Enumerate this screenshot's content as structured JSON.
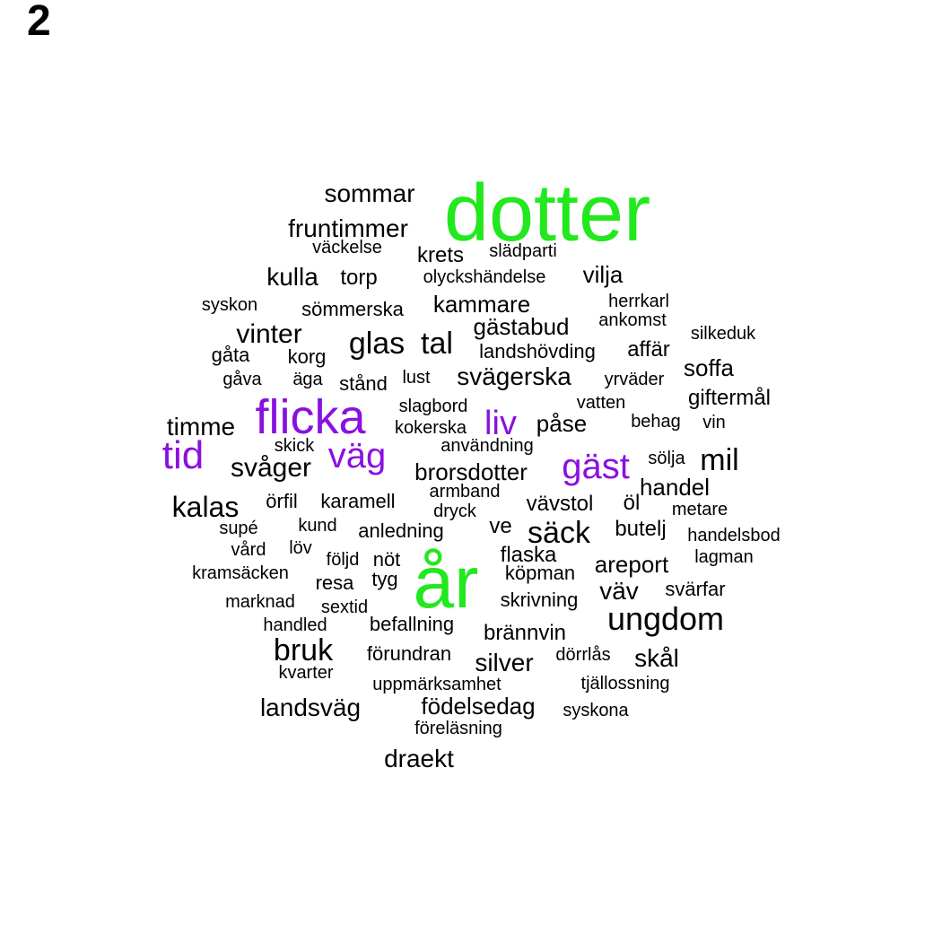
{
  "panel_label": "2",
  "colors": {
    "default": "#000000",
    "green": "#22e81e",
    "purple": "#8a10e0"
  },
  "words": [
    {
      "text": "dotter",
      "color": "green",
      "weight": 5.0
    },
    {
      "text": "år",
      "color": "green",
      "weight": 4.6
    },
    {
      "text": "flicka",
      "color": "purple",
      "weight": 3.6
    },
    {
      "text": "gäst",
      "color": "purple",
      "weight": 2.8
    },
    {
      "text": "tid",
      "color": "purple",
      "weight": 2.6
    },
    {
      "text": "väg",
      "color": "purple",
      "weight": 2.6
    },
    {
      "text": "liv",
      "color": "purple",
      "weight": 2.6
    },
    {
      "text": "ungdom",
      "color": "default",
      "weight": 2.4
    },
    {
      "text": "bruk",
      "color": "default",
      "weight": 2.3
    },
    {
      "text": "glas",
      "color": "default",
      "weight": 2.3
    },
    {
      "text": "tal",
      "color": "default",
      "weight": 2.3
    },
    {
      "text": "sommar",
      "color": "default",
      "weight": 1.9
    },
    {
      "text": "kalas",
      "color": "default",
      "weight": 2.2
    },
    {
      "text": "säck",
      "color": "default",
      "weight": 2.2
    },
    {
      "text": "mil",
      "color": "default",
      "weight": 2.2
    },
    {
      "text": "svåger",
      "color": "default",
      "weight": 2.0
    },
    {
      "text": "vinter",
      "color": "default",
      "weight": 2.0
    },
    {
      "text": "kulla",
      "color": "default",
      "weight": 1.9
    },
    {
      "text": "fruntimmer",
      "color": "default",
      "weight": 1.9
    },
    {
      "text": "timme",
      "color": "default",
      "weight": 1.9
    },
    {
      "text": "landsväg",
      "color": "default",
      "weight": 1.9
    },
    {
      "text": "svägerska",
      "color": "default",
      "weight": 1.9
    },
    {
      "text": "silver",
      "color": "default",
      "weight": 1.9
    },
    {
      "text": "skål",
      "color": "default",
      "weight": 1.9
    },
    {
      "text": "väv",
      "color": "default",
      "weight": 1.9
    },
    {
      "text": "kammare",
      "color": "default",
      "weight": 1.7
    },
    {
      "text": "gästabud",
      "color": "default",
      "weight": 1.7
    },
    {
      "text": "brorsdotter",
      "color": "default",
      "weight": 1.7
    },
    {
      "text": "handel",
      "color": "default",
      "weight": 1.7
    },
    {
      "text": "draekt",
      "color": "default",
      "weight": 1.7
    },
    {
      "text": "soffa",
      "color": "default",
      "weight": 1.7
    },
    {
      "text": "vilja",
      "color": "default",
      "weight": 1.7
    },
    {
      "text": "krets",
      "color": "default",
      "weight": 1.6
    },
    {
      "text": "torp",
      "color": "default",
      "weight": 1.6
    },
    {
      "text": "flaska",
      "color": "default",
      "weight": 1.6
    },
    {
      "text": "öl",
      "color": "default",
      "weight": 1.6
    },
    {
      "text": "ve",
      "color": "default",
      "weight": 1.6
    },
    {
      "text": "vävstol",
      "color": "default",
      "weight": 1.6
    },
    {
      "text": "affär",
      "color": "default",
      "weight": 1.6
    },
    {
      "text": "påse",
      "color": "default",
      "weight": 1.6
    },
    {
      "text": "areport",
      "color": "default",
      "weight": 1.6
    },
    {
      "text": "butelj",
      "color": "default",
      "weight": 1.6
    },
    {
      "text": "brännvin",
      "color": "default",
      "weight": 1.6
    },
    {
      "text": "födelsedag",
      "color": "default",
      "weight": 1.6
    },
    {
      "text": "giftermål",
      "color": "default",
      "weight": 1.6
    },
    {
      "text": "gåta",
      "color": "default",
      "weight": 1.5
    },
    {
      "text": "korg",
      "color": "default",
      "weight": 1.5
    },
    {
      "text": "stånd",
      "color": "default",
      "weight": 1.5
    },
    {
      "text": "landshövding",
      "color": "default",
      "weight": 1.5
    },
    {
      "text": "örfil",
      "color": "default",
      "weight": 1.5
    },
    {
      "text": "karamell",
      "color": "default",
      "weight": 1.5
    },
    {
      "text": "anledning",
      "color": "default",
      "weight": 1.5
    },
    {
      "text": "nöt",
      "color": "default",
      "weight": 1.5
    },
    {
      "text": "resa",
      "color": "default",
      "weight": 1.5
    },
    {
      "text": "tyg",
      "color": "default",
      "weight": 1.5
    },
    {
      "text": "köpman",
      "color": "default",
      "weight": 1.5
    },
    {
      "text": "befallning",
      "color": "default",
      "weight": 1.5
    },
    {
      "text": "förundran",
      "color": "default",
      "weight": 1.5
    },
    {
      "text": "svärfar",
      "color": "default",
      "weight": 1.5
    },
    {
      "text": "skrivning",
      "color": "default",
      "weight": 1.5
    },
    {
      "text": "sömmerska",
      "color": "default",
      "weight": 1.5
    },
    {
      "text": "olyckshändelse",
      "color": "default",
      "weight": 1.4
    },
    {
      "text": "syskon",
      "color": "default",
      "weight": 1.4
    },
    {
      "text": "herrkarl",
      "color": "default",
      "weight": 1.4
    },
    {
      "text": "gåva",
      "color": "default",
      "weight": 1.4
    },
    {
      "text": "slagbord",
      "color": "default",
      "weight": 1.4
    },
    {
      "text": "vatten",
      "color": "default",
      "weight": 1.4
    },
    {
      "text": "behag",
      "color": "default",
      "weight": 1.4
    },
    {
      "text": "vin",
      "color": "default",
      "weight": 1.4
    },
    {
      "text": "kokerska",
      "color": "default",
      "weight": 1.4
    },
    {
      "text": "skick",
      "color": "default",
      "weight": 1.4
    },
    {
      "text": "användning",
      "color": "default",
      "weight": 1.4
    },
    {
      "text": "armband",
      "color": "default",
      "weight": 1.4
    },
    {
      "text": "dryck",
      "color": "default",
      "weight": 1.4
    },
    {
      "text": "supé",
      "color": "default",
      "weight": 1.4
    },
    {
      "text": "kund",
      "color": "default",
      "weight": 1.4
    },
    {
      "text": "vård",
      "color": "default",
      "weight": 1.4
    },
    {
      "text": "löv",
      "color": "default",
      "weight": 1.4
    },
    {
      "text": "följd",
      "color": "default",
      "weight": 1.4
    },
    {
      "text": "kramsäcken",
      "color": "default",
      "weight": 1.4
    },
    {
      "text": "marknad",
      "color": "default",
      "weight": 1.4
    },
    {
      "text": "sextid",
      "color": "default",
      "weight": 1.4
    },
    {
      "text": "handled",
      "color": "default",
      "weight": 1.4
    },
    {
      "text": "kvarter",
      "color": "default",
      "weight": 1.4
    },
    {
      "text": "uppmärksamhet",
      "color": "default",
      "weight": 1.4
    },
    {
      "text": "tjällossning",
      "color": "default",
      "weight": 1.4
    },
    {
      "text": "föreläsning",
      "color": "default",
      "weight": 1.4
    },
    {
      "text": "syskona",
      "color": "default",
      "weight": 1.4
    },
    {
      "text": "dörrlås",
      "color": "default",
      "weight": 1.4
    },
    {
      "text": "lagman",
      "color": "default",
      "weight": 1.4
    },
    {
      "text": "handelsbod",
      "color": "default",
      "weight": 1.4
    },
    {
      "text": "metare",
      "color": "default",
      "weight": 1.4
    },
    {
      "text": "sölja",
      "color": "default",
      "weight": 1.4
    },
    {
      "text": "yrväder",
      "color": "default",
      "weight": 1.4
    },
    {
      "text": "silkeduk",
      "color": "default",
      "weight": 1.4
    },
    {
      "text": "ankomst",
      "color": "default",
      "weight": 1.4
    },
    {
      "text": "väckelse",
      "color": "default",
      "weight": 1.4
    },
    {
      "text": "slädparti",
      "color": "default",
      "weight": 1.4
    },
    {
      "text": "lust",
      "color": "default",
      "weight": 1.4
    },
    {
      "text": "äga",
      "color": "default",
      "weight": 1.4
    }
  ]
}
